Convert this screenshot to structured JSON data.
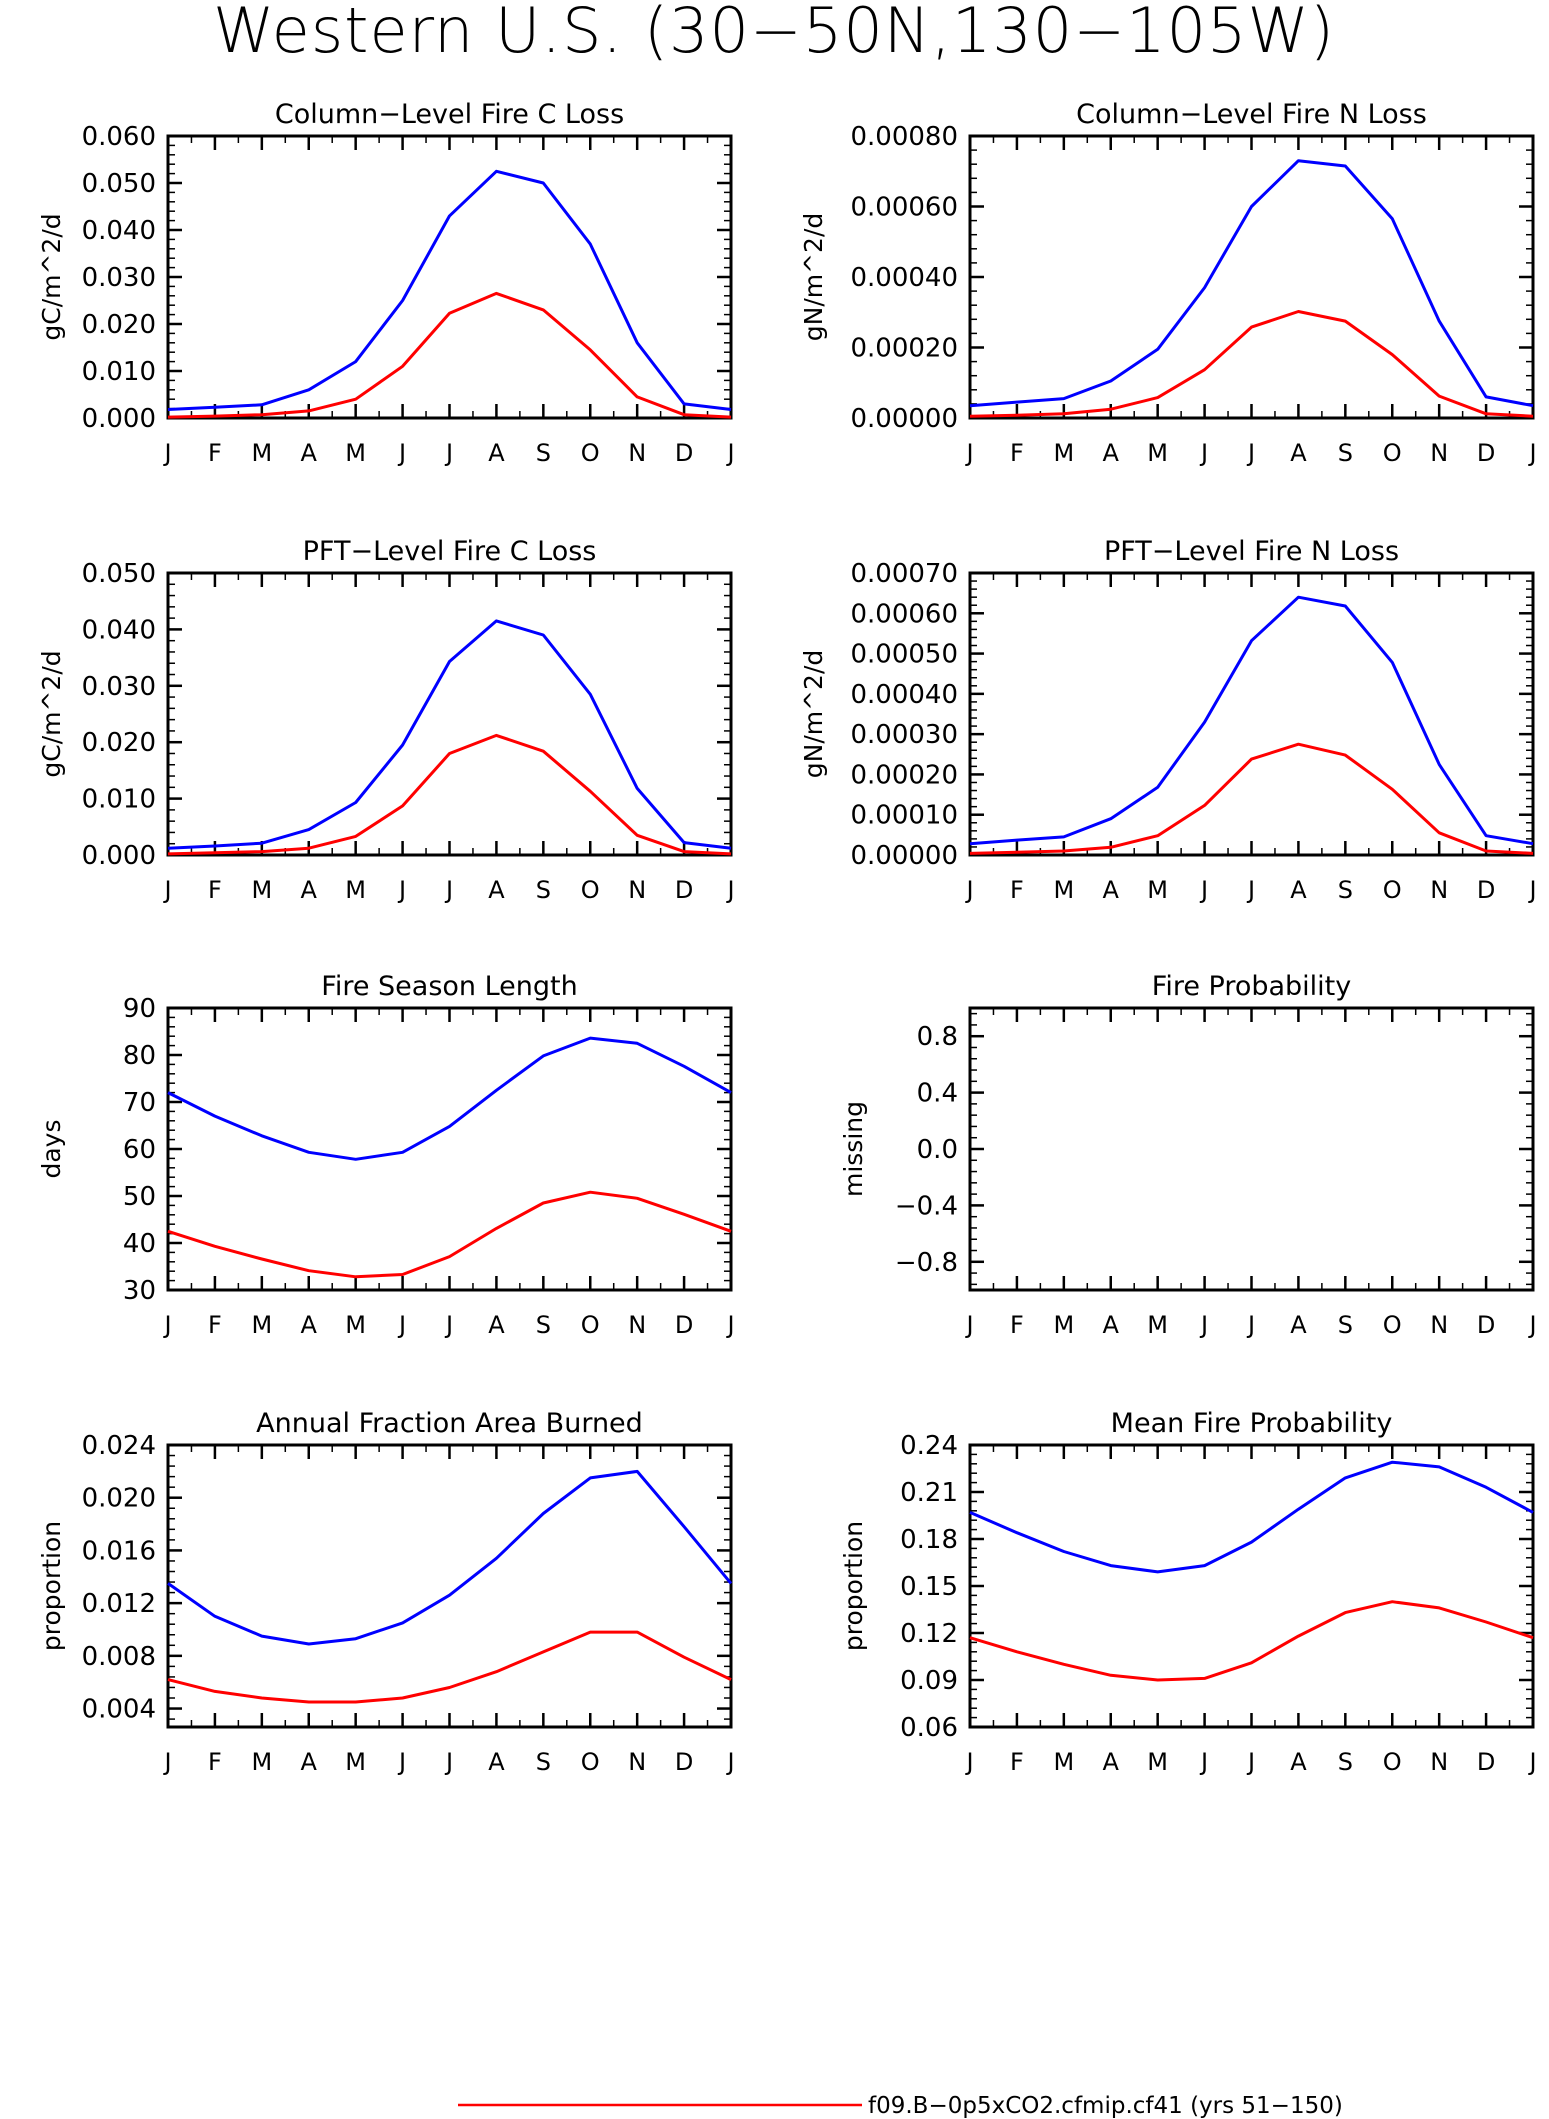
{
  "figure": {
    "title": "Western U.S. (30−50N,130−105W)",
    "months": [
      "J",
      "F",
      "M",
      "A",
      "M",
      "J",
      "J",
      "A",
      "S",
      "O",
      "N",
      "D",
      "J"
    ],
    "colors": {
      "blue": "#0000ff",
      "red": "#ff0000"
    },
    "legend": {
      "label": "f09.B−0p5xCO2.cfmip.cf41 (yrs 51−150)",
      "color": "#ff0000"
    }
  },
  "chart_data": [
    {
      "type": "line",
      "title": "Column−Level Fire C Loss",
      "ylabel": "gC/m^2/d",
      "ylim": [
        0,
        0.06
      ],
      "yticks": [
        "0.000",
        "0.010",
        "0.020",
        "0.030",
        "0.040",
        "0.050",
        "0.060"
      ],
      "series": [
        {
          "color": "#0000ff",
          "values": [
            0.0018,
            0.0023,
            0.0028,
            0.006,
            0.012,
            0.025,
            0.043,
            0.0525,
            0.05,
            0.037,
            0.016,
            0.003,
            0.0018
          ]
        },
        {
          "color": "#ff0000",
          "values": [
            0.0002,
            0.0004,
            0.0007,
            0.0015,
            0.004,
            0.011,
            0.0223,
            0.0265,
            0.023,
            0.0145,
            0.0045,
            0.0007,
            0.0002
          ]
        }
      ]
    },
    {
      "type": "line",
      "title": "Column−Level Fire N Loss",
      "ylabel": "gN/m^2/d",
      "ylim": [
        0,
        0.0008
      ],
      "yticks": [
        "0.00000",
        "0.00020",
        "0.00040",
        "0.00060",
        "0.00080"
      ],
      "series": [
        {
          "color": "#0000ff",
          "values": [
            3.5e-05,
            4.5e-05,
            5.5e-05,
            0.000105,
            0.000195,
            0.00037,
            0.0006,
            0.00073,
            0.000715,
            0.000565,
            0.000275,
            6e-05,
            3.5e-05
          ]
        },
        {
          "color": "#ff0000",
          "values": [
            5e-06,
            8e-06,
            1.2e-05,
            2.5e-05,
            5.8e-05,
            0.000137,
            0.000258,
            0.000302,
            0.000275,
            0.00018,
            6.2e-05,
            1.2e-05,
            5e-06
          ]
        }
      ]
    },
    {
      "type": "line",
      "title": "PFT−Level Fire C Loss",
      "ylabel": "gC/m^2/d",
      "ylim": [
        0,
        0.05
      ],
      "yticks": [
        "0.000",
        "0.010",
        "0.020",
        "0.030",
        "0.040",
        "0.050"
      ],
      "series": [
        {
          "color": "#0000ff",
          "values": [
            0.0012,
            0.0016,
            0.0021,
            0.0045,
            0.0093,
            0.0195,
            0.0343,
            0.0415,
            0.039,
            0.0285,
            0.0118,
            0.0022,
            0.0012
          ]
        },
        {
          "color": "#ff0000",
          "values": [
            0.0002,
            0.0004,
            0.0006,
            0.0012,
            0.0033,
            0.0087,
            0.018,
            0.0212,
            0.0184,
            0.0113,
            0.0035,
            0.0006,
            0.0002
          ]
        }
      ]
    },
    {
      "type": "line",
      "title": "PFT−Level Fire N Loss",
      "ylabel": "gN/m^2/d",
      "ylim": [
        0,
        0.0007
      ],
      "yticks": [
        "0.00000",
        "0.00010",
        "0.00020",
        "0.00030",
        "0.00040",
        "0.00050",
        "0.00060",
        "0.00070"
      ],
      "series": [
        {
          "color": "#0000ff",
          "values": [
            2.8e-05,
            3.7e-05,
            4.5e-05,
            9e-05,
            0.000168,
            0.00033,
            0.000532,
            0.00064,
            0.000618,
            0.000478,
            0.000225,
            4.8e-05,
            2.8e-05
          ]
        },
        {
          "color": "#ff0000",
          "values": [
            4e-06,
            7e-06,
            1e-05,
            1.9e-05,
            4.8e-05,
            0.000123,
            0.000238,
            0.000275,
            0.000248,
            0.000163,
            5.5e-05,
            1e-05,
            4e-06
          ]
        }
      ]
    },
    {
      "type": "line",
      "title": "Fire Season Length",
      "ylabel": "days",
      "ylim": [
        30,
        90
      ],
      "yticks": [
        "30",
        "40",
        "50",
        "60",
        "70",
        "80",
        "90"
      ],
      "series": [
        {
          "color": "#0000ff",
          "values": [
            72,
            67,
            62.8,
            59.3,
            57.8,
            59.3,
            64.8,
            72.5,
            79.8,
            83.6,
            82.5,
            77.6,
            72
          ]
        },
        {
          "color": "#ff0000",
          "values": [
            42.5,
            39.3,
            36.6,
            34.1,
            32.8,
            33.3,
            37.1,
            43.1,
            48.5,
            50.8,
            49.5,
            46.1,
            42.5
          ]
        }
      ]
    },
    {
      "type": "line",
      "title": "Fire Probability",
      "ylabel": "missing",
      "ylim": [
        -1,
        1
      ],
      "yticks": [
        "−0.8",
        "−0.4",
        "0.0",
        "0.4",
        "0.8"
      ],
      "series": []
    },
    {
      "type": "line",
      "title": "Annual Fraction Area Burned",
      "ylabel": "proportion",
      "ylim": [
        0.0026,
        0.024
      ],
      "yticks": [
        "0.004",
        "0.008",
        "0.012",
        "0.016",
        "0.020",
        "0.024"
      ],
      "series": [
        {
          "color": "#0000ff",
          "values": [
            0.0135,
            0.011,
            0.0095,
            0.0089,
            0.0093,
            0.0105,
            0.0126,
            0.0154,
            0.0188,
            0.0215,
            0.022,
            0.0178,
            0.0135
          ]
        },
        {
          "color": "#ff0000",
          "values": [
            0.0062,
            0.0053,
            0.0048,
            0.0045,
            0.0045,
            0.0048,
            0.0056,
            0.0068,
            0.0083,
            0.0098,
            0.0098,
            0.0079,
            0.0062
          ]
        }
      ]
    },
    {
      "type": "line",
      "title": "Mean Fire Probability",
      "ylabel": "proportion",
      "ylim": [
        0.06,
        0.24
      ],
      "yticks": [
        "0.06",
        "0.09",
        "0.12",
        "0.15",
        "0.18",
        "0.21",
        "0.24"
      ],
      "series": [
        {
          "color": "#0000ff",
          "values": [
            0.197,
            0.184,
            0.172,
            0.163,
            0.159,
            0.163,
            0.178,
            0.199,
            0.219,
            0.229,
            0.226,
            0.213,
            0.197
          ]
        },
        {
          "color": "#ff0000",
          "values": [
            0.117,
            0.108,
            0.1,
            0.093,
            0.09,
            0.091,
            0.101,
            0.118,
            0.133,
            0.14,
            0.136,
            0.127,
            0.117
          ]
        }
      ]
    }
  ]
}
